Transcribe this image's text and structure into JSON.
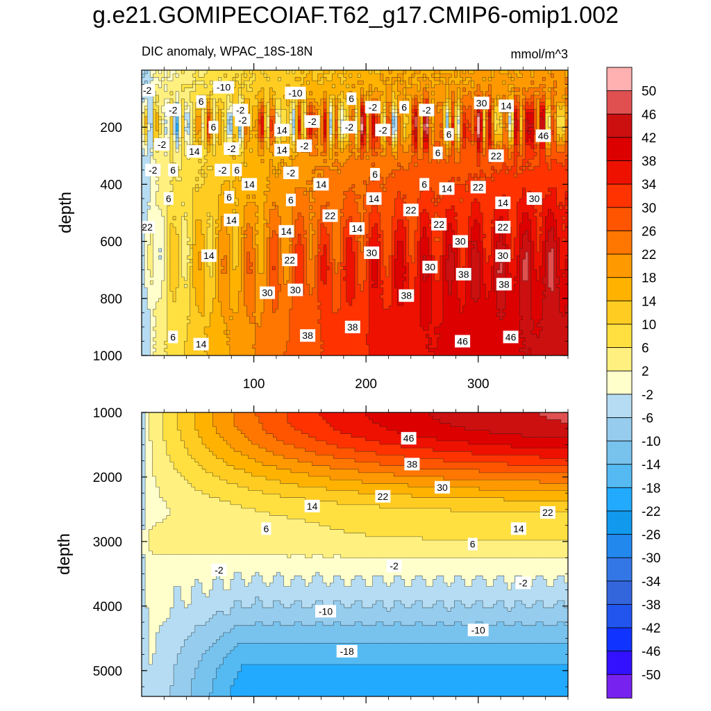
{
  "title": "g.e21.GOMIPECOIAF.T62_g17.CMIP6-omip1.002",
  "chart_data": {
    "type": "heatmap",
    "subtitle": "DIC anomaly, WPAC_18S-18N",
    "units": "mmol/m^3",
    "xlabel": "",
    "ylabel": "depth",
    "xlim": [
      0,
      380
    ],
    "x_ticks": [
      "100",
      "200",
      "300"
    ],
    "x_tick_values": [
      100,
      200,
      300
    ],
    "colorbar_levels": [
      "50",
      "46",
      "42",
      "38",
      "34",
      "30",
      "26",
      "22",
      "18",
      "14",
      "10",
      "6",
      "2",
      "-2",
      "-6",
      "-10",
      "-14",
      "-18",
      "-22",
      "-26",
      "-30",
      "-34",
      "-38",
      "-42",
      "-46",
      "-50"
    ],
    "colorbar_colors": [
      "#ffb0b0",
      "#e05050",
      "#cc1010",
      "#dd0000",
      "#ee1100",
      "#ff3300",
      "#ff5500",
      "#ff7700",
      "#ff9900",
      "#ffb300",
      "#ffcc22",
      "#ffe040",
      "#fff080",
      "#ffffcc",
      "#b5dcf2",
      "#96cdee",
      "#78c2ee",
      "#55baf2",
      "#22aaff",
      "#1199ee",
      "#2288ee",
      "#3377e6",
      "#3366dd",
      "#2255ee",
      "#1133ff",
      "#3311ff",
      "#7722ee"
    ],
    "panels": [
      {
        "name": "upper",
        "ylim": [
          1000,
          0
        ],
        "y_ticks": [
          "200",
          "400",
          "600",
          "800",
          "1000"
        ],
        "y_tick_values": [
          200,
          400,
          600,
          800,
          1000
        ],
        "contour_labels": [
          {
            "t": "-2",
            "x": 5,
            "y": 70
          },
          {
            "t": "-10",
            "x": 73,
            "y": 60
          },
          {
            "t": "-10",
            "x": 137,
            "y": 80
          },
          {
            "t": "6",
            "x": 53,
            "y": 110
          },
          {
            "t": "-2",
            "x": 28,
            "y": 140
          },
          {
            "t": "6",
            "x": 64,
            "y": 200
          },
          {
            "t": "-2",
            "x": 90,
            "y": 175
          },
          {
            "t": "-2",
            "x": 88,
            "y": 140
          },
          {
            "t": "14",
            "x": 125,
            "y": 210
          },
          {
            "t": "-2",
            "x": 152,
            "y": 180
          },
          {
            "t": "6",
            "x": 187,
            "y": 100
          },
          {
            "t": "-2",
            "x": 206,
            "y": 130
          },
          {
            "t": "6",
            "x": 234,
            "y": 130
          },
          {
            "t": "-2",
            "x": 254,
            "y": 140
          },
          {
            "t": "30",
            "x": 303,
            "y": 115
          },
          {
            "t": "14",
            "x": 325,
            "y": 125
          },
          {
            "t": "-2",
            "x": 18,
            "y": 260
          },
          {
            "t": "14",
            "x": 47,
            "y": 285
          },
          {
            "t": "-2",
            "x": 80,
            "y": 275
          },
          {
            "t": "-2",
            "x": 185,
            "y": 200
          },
          {
            "t": "-2",
            "x": 215,
            "y": 210
          },
          {
            "t": "6",
            "x": 274,
            "y": 225
          },
          {
            "t": "14",
            "x": 125,
            "y": 280
          },
          {
            "t": "-2",
            "x": 145,
            "y": 265
          },
          {
            "t": "6",
            "x": 264,
            "y": 290
          },
          {
            "t": "46",
            "x": 358,
            "y": 230
          },
          {
            "t": "-2",
            "x": 10,
            "y": 350
          },
          {
            "t": "6",
            "x": 28,
            "y": 350
          },
          {
            "t": "-2",
            "x": 72,
            "y": 350
          },
          {
            "t": "6",
            "x": 85,
            "y": 350
          },
          {
            "t": "-2",
            "x": 133,
            "y": 360
          },
          {
            "t": "22",
            "x": 316,
            "y": 300
          },
          {
            "t": "6",
            "x": 208,
            "y": 365
          },
          {
            "t": "14",
            "x": 96,
            "y": 400
          },
          {
            "t": "14",
            "x": 160,
            "y": 400
          },
          {
            "t": "6",
            "x": 252,
            "y": 400
          },
          {
            "t": "6",
            "x": 24,
            "y": 450
          },
          {
            "t": "6",
            "x": 78,
            "y": 445
          },
          {
            "t": "14",
            "x": 207,
            "y": 450
          },
          {
            "t": "14",
            "x": 272,
            "y": 415
          },
          {
            "t": "22",
            "x": 300,
            "y": 410
          },
          {
            "t": "30",
            "x": 350,
            "y": 450
          },
          {
            "t": "6",
            "x": 133,
            "y": 455
          },
          {
            "t": "14",
            "x": 322,
            "y": 465
          },
          {
            "t": "14",
            "x": 80,
            "y": 525
          },
          {
            "t": "22",
            "x": 168,
            "y": 510
          },
          {
            "t": "22",
            "x": 240,
            "y": 490
          },
          {
            "t": "22",
            "x": 265,
            "y": 540
          },
          {
            "t": "22",
            "x": 5,
            "y": 550
          },
          {
            "t": "14",
            "x": 192,
            "y": 555
          },
          {
            "t": "22",
            "x": 322,
            "y": 550
          },
          {
            "t": "14",
            "x": 129,
            "y": 565
          },
          {
            "t": "30",
            "x": 284,
            "y": 600
          },
          {
            "t": "30",
            "x": 205,
            "y": 640
          },
          {
            "t": "14",
            "x": 60,
            "y": 650
          },
          {
            "t": "30",
            "x": 322,
            "y": 650
          },
          {
            "t": "22",
            "x": 132,
            "y": 665
          },
          {
            "t": "30",
            "x": 257,
            "y": 690
          },
          {
            "t": "38",
            "x": 287,
            "y": 715
          },
          {
            "t": "38",
            "x": 323,
            "y": 750
          },
          {
            "t": "30",
            "x": 112,
            "y": 780
          },
          {
            "t": "30",
            "x": 137,
            "y": 770
          },
          {
            "t": "38",
            "x": 236,
            "y": 790
          },
          {
            "t": "6",
            "x": 28,
            "y": 935
          },
          {
            "t": "14",
            "x": 53,
            "y": 960
          },
          {
            "t": "38",
            "x": 148,
            "y": 930
          },
          {
            "t": "38",
            "x": 188,
            "y": 900
          },
          {
            "t": "46",
            "x": 286,
            "y": 950
          },
          {
            "t": "46",
            "x": 329,
            "y": 935
          }
        ]
      },
      {
        "name": "lower",
        "ylim": [
          5400,
          1000
        ],
        "y_ticks": [
          "1000",
          "2000",
          "3000",
          "4000",
          "5000"
        ],
        "y_tick_values": [
          1000,
          2000,
          3000,
          4000,
          5000
        ],
        "contour_labels": [
          {
            "t": "46",
            "x": 238,
            "y": 1400
          },
          {
            "t": "38",
            "x": 241,
            "y": 1800
          },
          {
            "t": "30",
            "x": 268,
            "y": 2160
          },
          {
            "t": "22",
            "x": 215,
            "y": 2300
          },
          {
            "t": "22",
            "x": 362,
            "y": 2550
          },
          {
            "t": "14",
            "x": 152,
            "y": 2450
          },
          {
            "t": "14",
            "x": 336,
            "y": 2800
          },
          {
            "t": "6",
            "x": 111,
            "y": 2800
          },
          {
            "t": "6",
            "x": 295,
            "y": 3040
          },
          {
            "t": "-2",
            "x": 69,
            "y": 3440
          },
          {
            "t": "-2",
            "x": 225,
            "y": 3380
          },
          {
            "t": "-2",
            "x": 340,
            "y": 3640
          },
          {
            "t": "-10",
            "x": 164,
            "y": 4080
          },
          {
            "t": "-10",
            "x": 300,
            "y": 4370
          },
          {
            "t": "-18",
            "x": 183,
            "y": 4700
          }
        ]
      }
    ]
  }
}
